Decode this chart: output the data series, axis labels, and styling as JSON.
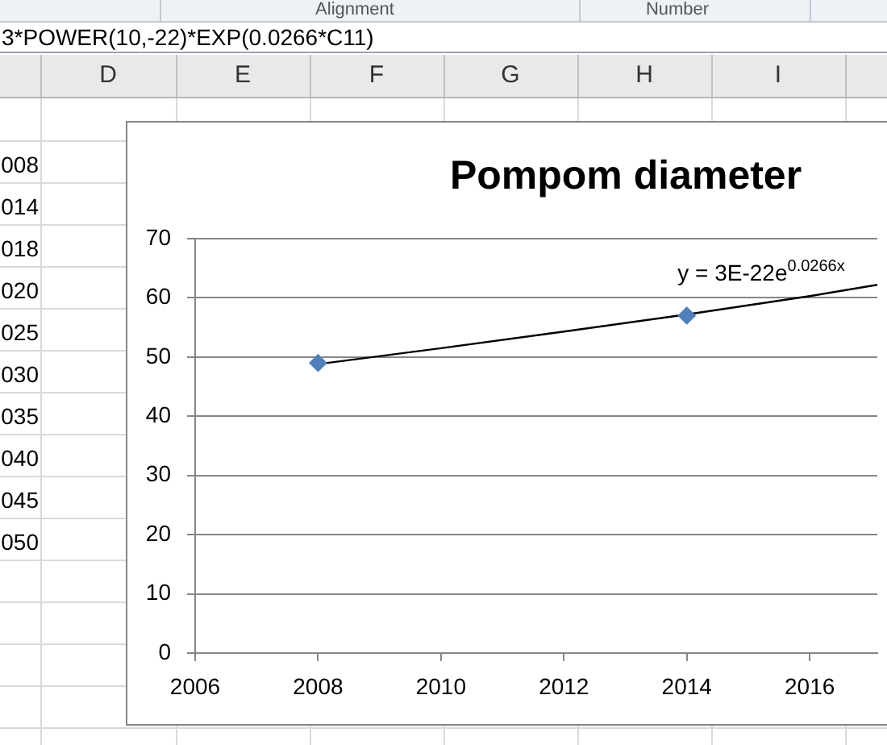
{
  "chart_data": {
    "type": "scatter",
    "title": "Pompom diameter",
    "series": [
      {
        "color": "#4f81bd",
        "x": [
          2008,
          2014
        ],
        "values": [
          49,
          57
        ]
      },
      {
        "type": "line",
        "color": "#000000",
        "marker": "none",
        "x": [
          2008,
          2010,
          2012,
          2014,
          2016,
          2017.1
        ],
        "values": [
          48.8,
          51.5,
          54.3,
          57.2,
          60.3,
          62.2
        ]
      }
    ],
    "xlim": [
      2006,
      2017.1
    ],
    "xticks": [
      2006,
      2008,
      2010,
      2012,
      2014,
      2016
    ],
    "ylim": [
      0,
      70
    ],
    "yticks": [
      0,
      10,
      20,
      30,
      40,
      50,
      60,
      70
    ],
    "grid": "y",
    "marker": "diamond",
    "annotations": [
      "y = 3E-22e$^{0.0266x}$",
      "Alignment",
      "Number",
      "3*POWER(10,-22)*EXP(0.0266*C11)",
      "D",
      "E",
      "F",
      "G",
      "H",
      "I",
      "008",
      "014",
      "018",
      "020",
      "025",
      "030",
      "035",
      "040",
      "045",
      "050"
    ]
  }
}
